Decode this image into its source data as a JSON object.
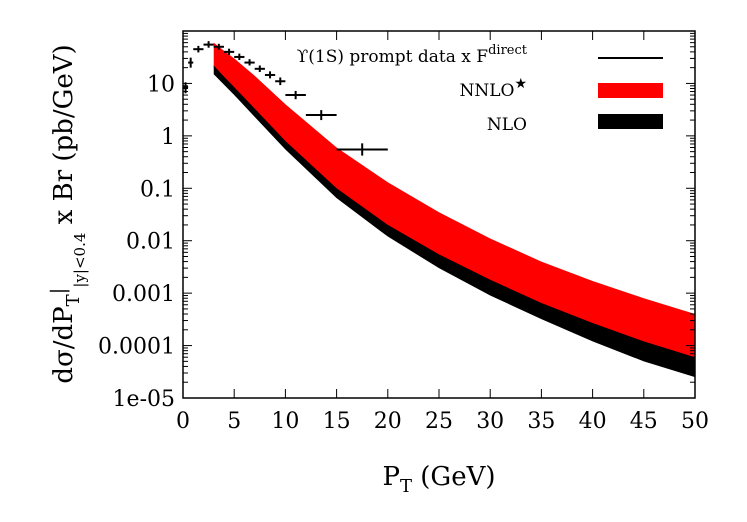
{
  "chart_data": {
    "type": "line",
    "xlabel": "P",
    "xlabel_sub": "T",
    "xlabel_unit": " (GeV)",
    "ylabel_parts": [
      "dσ/dP",
      "T",
      "|",
      "|y|<0.4",
      " x Br (pb/GeV)"
    ],
    "xlim": [
      0,
      50
    ],
    "ylim": [
      1e-05,
      100
    ],
    "yscale": "log",
    "x_ticks": [
      0,
      5,
      10,
      15,
      20,
      25,
      30,
      35,
      40,
      45,
      50
    ],
    "x_tick_labels": [
      "0",
      "5",
      "10",
      "15",
      "20",
      "25",
      "30",
      "35",
      "40",
      "45",
      "50"
    ],
    "y_ticks": [
      1e-05,
      0.0001,
      0.001,
      0.01,
      0.1,
      1,
      10
    ],
    "y_tick_labels": [
      "1e-05",
      "0.0001",
      "0.001",
      "0.01",
      "0.1",
      "1",
      "10"
    ],
    "legend_position": "top-right",
    "series": [
      {
        "name": "ϒ(1S) prompt data x F",
        "name_sup": "direct",
        "kind": "data",
        "color": "#000000",
        "points": [
          {
            "x": 0.25,
            "y": 8.5,
            "xerr": 0.25,
            "ylow": 6.5,
            "yhigh": 10.5
          },
          {
            "x": 0.75,
            "y": 25,
            "xerr": 0.25,
            "ylow": 20,
            "yhigh": 31
          },
          {
            "x": 1.5,
            "y": 45,
            "xerr": 0.5,
            "ylow": 39,
            "yhigh": 52
          },
          {
            "x": 2.5,
            "y": 55,
            "xerr": 0.5,
            "ylow": 48,
            "yhigh": 64
          },
          {
            "x": 3.5,
            "y": 50,
            "xerr": 0.5,
            "ylow": 44,
            "yhigh": 57
          },
          {
            "x": 4.5,
            "y": 40,
            "xerr": 0.5,
            "ylow": 35,
            "yhigh": 46
          },
          {
            "x": 5.5,
            "y": 32,
            "xerr": 0.5,
            "ylow": 28,
            "yhigh": 37
          },
          {
            "x": 6.5,
            "y": 25,
            "xerr": 0.5,
            "ylow": 22,
            "yhigh": 29
          },
          {
            "x": 7.5,
            "y": 19,
            "xerr": 0.5,
            "ylow": 16.5,
            "yhigh": 22
          },
          {
            "x": 8.5,
            "y": 14.5,
            "xerr": 0.5,
            "ylow": 12.5,
            "yhigh": 17
          },
          {
            "x": 9.5,
            "y": 11,
            "xerr": 0.5,
            "ylow": 9.3,
            "yhigh": 13
          },
          {
            "x": 11,
            "y": 6,
            "xerr": 1,
            "ylow": 5,
            "yhigh": 7.2
          },
          {
            "x": 13.5,
            "y": 2.5,
            "xerr": 1.5,
            "ylow": 2.0,
            "yhigh": 3.1
          },
          {
            "x": 17.5,
            "y": 0.55,
            "xerr": 2.5,
            "ylow": 0.42,
            "yhigh": 0.72
          }
        ]
      },
      {
        "name": "NNLO",
        "name_sup": "★",
        "kind": "band",
        "color": "#ff0000",
        "x": [
          3,
          4,
          5,
          7,
          10,
          15,
          20,
          25,
          30,
          35,
          40,
          45,
          50
        ],
        "low": [
          20,
          12,
          7.5,
          2.8,
          0.7,
          0.09,
          0.018,
          0.005,
          0.0016,
          0.0006,
          0.00025,
          0.00011,
          5.5e-05
        ],
        "high": [
          60,
          42,
          30,
          14,
          4,
          0.6,
          0.13,
          0.035,
          0.011,
          0.004,
          0.0017,
          0.0008,
          0.0004
        ]
      },
      {
        "name": "NLO",
        "kind": "band",
        "color": "#000000",
        "x": [
          3,
          4,
          5,
          7,
          10,
          15,
          20,
          25,
          30,
          35,
          40,
          45,
          50
        ],
        "low": [
          15,
          9.5,
          6,
          2.3,
          0.55,
          0.065,
          0.012,
          0.003,
          0.0009,
          0.00032,
          0.00012,
          5e-05,
          2.5e-05
        ],
        "high": [
          22,
          13.5,
          8.5,
          3.3,
          0.8,
          0.1,
          0.02,
          0.0055,
          0.0018,
          0.00065,
          0.00027,
          0.00012,
          6e-05
        ]
      }
    ]
  }
}
